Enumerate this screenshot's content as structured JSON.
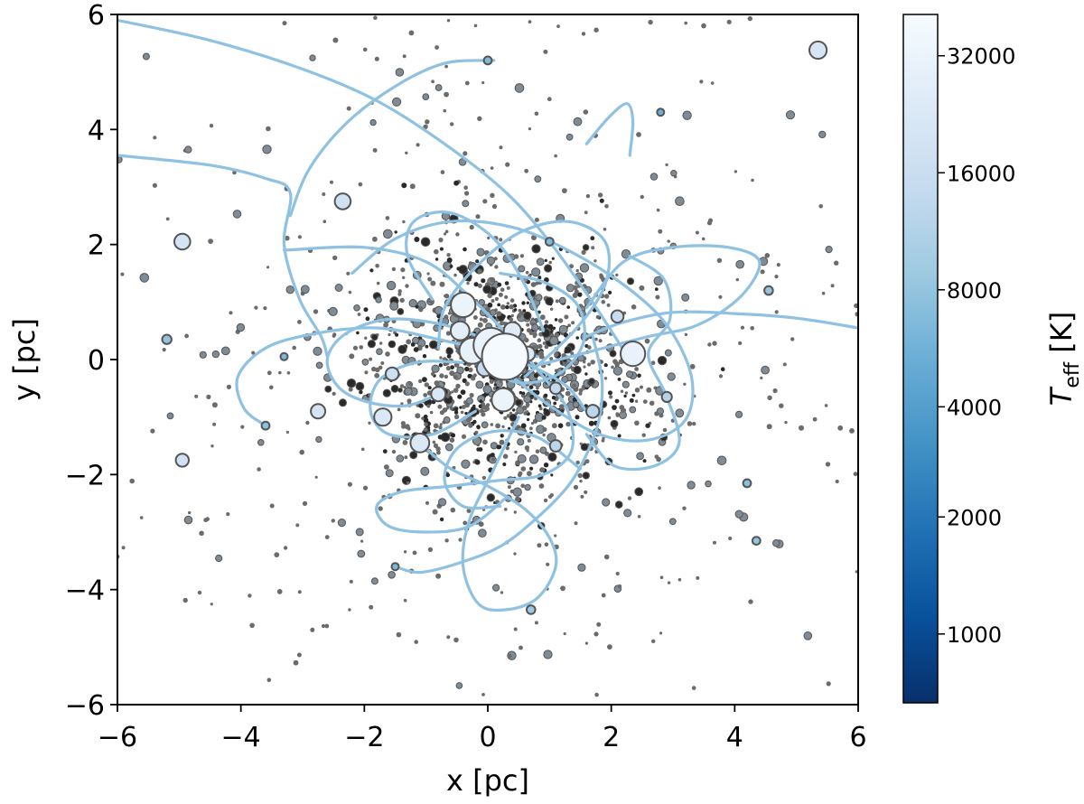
{
  "chart_data": {
    "type": "scatter",
    "xlabel": "x [pc]",
    "ylabel": "y [pc]",
    "xlim": [
      -6,
      6
    ],
    "ylim": [
      -6,
      6
    ],
    "xticks": [
      -6,
      -4,
      -2,
      0,
      2,
      4,
      6
    ],
    "yticks": [
      -6,
      -4,
      -2,
      0,
      2,
      4,
      6
    ],
    "xtick_labels": [
      "−6",
      "−4",
      "−2",
      "0",
      "2",
      "4",
      "6"
    ],
    "ytick_labels": [
      "−6",
      "−4",
      "−2",
      "0",
      "2",
      "4",
      "6"
    ],
    "grid": false,
    "colorbar": {
      "label_main": "T",
      "label_sub": "eff",
      "label_unit": " [K]",
      "ticks": [
        {
          "label": "1000",
          "frac": 0.1
        },
        {
          "label": "2000",
          "frac": 0.27
        },
        {
          "label": "4000",
          "frac": 0.43
        },
        {
          "label": "8000",
          "frac": 0.6
        },
        {
          "label": "16000",
          "frac": 0.77
        },
        {
          "label": "32000",
          "frac": 0.94
        }
      ],
      "colors": [
        "#08306b",
        "#08519c",
        "#2171b5",
        "#4292c6",
        "#6baed6",
        "#9ecae1",
        "#c6dbef",
        "#deebf7",
        "#f7fbff"
      ]
    },
    "colors": {
      "orbit": "#8ec1e2",
      "star_small": "#6b6b6b",
      "star_edge": "#555555"
    },
    "background_stars": {
      "count": 1700,
      "core_fraction": 0.65,
      "core_center": [
        0.3,
        -0.1
      ],
      "core_sigma": 1.05,
      "halo_sigma": 3.4,
      "seed": 12345
    },
    "stars": [
      {
        "x": 0.28,
        "y": 0.05,
        "size": 3.2,
        "teff_frac": 0.99
      },
      {
        "x": 0.05,
        "y": 0.25,
        "size": 2.4,
        "teff_frac": 0.93
      },
      {
        "x": -0.25,
        "y": 0.15,
        "size": 1.8,
        "teff_frac": 0.92
      },
      {
        "x": -0.4,
        "y": 0.95,
        "size": 1.7,
        "teff_frac": 0.94
      },
      {
        "x": 0.25,
        "y": -0.7,
        "size": 1.6,
        "teff_frac": 0.94
      },
      {
        "x": 2.35,
        "y": 0.1,
        "size": 1.7,
        "teff_frac": 0.93
      },
      {
        "x": -0.45,
        "y": 0.5,
        "size": 1.3,
        "teff_frac": 0.9
      },
      {
        "x": 0.4,
        "y": 0.5,
        "size": 1.2,
        "teff_frac": 0.88
      },
      {
        "x": -1.1,
        "y": -1.45,
        "size": 1.3,
        "teff_frac": 0.86
      },
      {
        "x": -1.7,
        "y": -1.0,
        "size": 1.2,
        "teff_frac": 0.86
      },
      {
        "x": -0.8,
        "y": -0.6,
        "size": 1.0,
        "teff_frac": 0.84
      },
      {
        "x": 5.35,
        "y": 5.38,
        "size": 1.2,
        "teff_frac": 0.83
      },
      {
        "x": -2.35,
        "y": 2.75,
        "size": 1.1,
        "teff_frac": 0.8
      },
      {
        "x": -4.95,
        "y": 2.05,
        "size": 1.1,
        "teff_frac": 0.82
      },
      {
        "x": -2.75,
        "y": -0.9,
        "size": 1.0,
        "teff_frac": 0.82
      },
      {
        "x": -4.95,
        "y": -1.75,
        "size": 0.9,
        "teff_frac": 0.8
      },
      {
        "x": -1.55,
        "y": -0.25,
        "size": 0.9,
        "teff_frac": 0.78
      },
      {
        "x": 1.7,
        "y": -0.9,
        "size": 0.9,
        "teff_frac": 0.72
      },
      {
        "x": 1.1,
        "y": -0.5,
        "size": 0.8,
        "teff_frac": 0.74
      },
      {
        "x": 2.1,
        "y": 0.75,
        "size": 0.85,
        "teff_frac": 0.76
      },
      {
        "x": -0.05,
        "y": -0.15,
        "size": 1.1,
        "teff_frac": 0.75
      },
      {
        "x": 0.65,
        "y": 0.1,
        "size": 1.0,
        "teff_frac": 0.86
      },
      {
        "x": 1.1,
        "y": -1.5,
        "size": 0.8,
        "teff_frac": 0.72
      },
      {
        "x": 2.9,
        "y": -0.65,
        "size": 0.7,
        "teff_frac": 0.7
      },
      {
        "x": 4.35,
        "y": -3.15,
        "size": 0.55,
        "teff_frac": 0.6
      },
      {
        "x": 4.55,
        "y": 1.2,
        "size": 0.6,
        "teff_frac": 0.6
      },
      {
        "x": -5.2,
        "y": 0.35,
        "size": 0.65,
        "teff_frac": 0.6
      },
      {
        "x": -3.6,
        "y": -1.15,
        "size": 0.55,
        "teff_frac": 0.58
      },
      {
        "x": 0.7,
        "y": -4.35,
        "size": 0.6,
        "teff_frac": 0.62
      },
      {
        "x": 0.0,
        "y": 5.2,
        "size": 0.55,
        "teff_frac": 0.55
      },
      {
        "x": 2.8,
        "y": 4.3,
        "size": 0.5,
        "teff_frac": 0.5
      },
      {
        "x": 1.0,
        "y": 2.05,
        "size": 0.55,
        "teff_frac": 0.55
      },
      {
        "x": -1.5,
        "y": -3.6,
        "size": 0.5,
        "teff_frac": 0.55
      },
      {
        "x": -3.3,
        "y": 0.05,
        "size": 0.5,
        "teff_frac": 0.55
      },
      {
        "x": 4.2,
        "y": -2.15,
        "size": 0.55,
        "teff_frac": 0.58
      }
    ],
    "orbits": [
      {
        "pts": [
          [
            -6.0,
            5.9
          ],
          [
            -4.5,
            5.55
          ],
          [
            -3.0,
            5.05
          ],
          [
            -1.8,
            4.5
          ],
          [
            -0.7,
            3.75
          ],
          [
            0.3,
            2.9
          ],
          [
            1.0,
            2.05
          ],
          [
            1.6,
            1.15
          ],
          [
            2.0,
            0.5
          ],
          [
            2.35,
            -0.1
          ]
        ]
      },
      {
        "pts": [
          [
            -6.0,
            3.55
          ],
          [
            -4.5,
            3.38
          ],
          [
            -3.6,
            3.15
          ],
          [
            -3.2,
            2.9
          ],
          [
            -3.3,
            2.0
          ],
          [
            -3.05,
            1.05
          ],
          [
            -2.7,
            0.4
          ],
          [
            -2.6,
            0.05
          ]
        ]
      },
      {
        "pts": [
          [
            0.1,
            5.2
          ],
          [
            -0.7,
            5.15
          ],
          [
            -1.5,
            4.75
          ],
          [
            -2.3,
            4.1
          ],
          [
            -2.9,
            3.3
          ],
          [
            -3.2,
            2.5
          ]
        ]
      },
      {
        "pts": [
          [
            1.6,
            3.75
          ],
          [
            1.95,
            4.2
          ],
          [
            2.25,
            4.45
          ],
          [
            2.35,
            4.15
          ],
          [
            2.3,
            3.55
          ]
        ]
      },
      {
        "pts": [
          [
            -3.6,
            -1.15
          ],
          [
            -3.95,
            -0.85
          ],
          [
            -4.05,
            -0.3
          ],
          [
            -3.6,
            0.2
          ],
          [
            -2.8,
            0.45
          ],
          [
            -1.8,
            0.55
          ],
          [
            -0.8,
            0.35
          ],
          [
            0.3,
            0.05
          ],
          [
            1.2,
            -0.4
          ],
          [
            1.6,
            -0.9
          ]
        ]
      },
      {
        "pts": [
          [
            -3.3,
            1.9
          ],
          [
            -2.0,
            1.95
          ],
          [
            -1.0,
            1.7
          ],
          [
            -0.3,
            1.1
          ],
          [
            0.3,
            0.45
          ],
          [
            0.9,
            -0.3
          ],
          [
            1.3,
            -0.9
          ],
          [
            1.35,
            -1.6
          ],
          [
            0.9,
            -2.0
          ],
          [
            0.2,
            -2.1
          ],
          [
            -0.6,
            -2.2
          ],
          [
            -1.4,
            -2.3
          ],
          [
            -1.8,
            -2.55
          ],
          [
            -1.6,
            -2.9
          ],
          [
            -1.0,
            -3.0
          ],
          [
            -0.3,
            -2.9
          ],
          [
            0.3,
            -2.4
          ]
        ]
      },
      {
        "pts": [
          [
            -2.2,
            1.5
          ],
          [
            -1.5,
            2.1
          ],
          [
            -0.6,
            2.4
          ],
          [
            0.4,
            2.3
          ],
          [
            1.3,
            1.9
          ],
          [
            2.2,
            1.3
          ],
          [
            2.9,
            0.6
          ],
          [
            3.3,
            -0.3
          ],
          [
            3.2,
            -1.05
          ],
          [
            2.6,
            -1.4
          ],
          [
            1.8,
            -1.3
          ],
          [
            1.0,
            -0.8
          ],
          [
            0.4,
            -0.3
          ]
        ]
      },
      {
        "pts": [
          [
            1.6,
            0.9
          ],
          [
            2.2,
            1.7
          ],
          [
            3.0,
            1.95
          ],
          [
            3.9,
            1.95
          ],
          [
            4.4,
            1.7
          ],
          [
            4.1,
            1.1
          ],
          [
            3.4,
            0.6
          ],
          [
            2.6,
            0.4
          ],
          [
            1.7,
            0.15
          ],
          [
            0.8,
            -0.1
          ]
        ]
      },
      {
        "pts": [
          [
            -1.0,
            -1.55
          ],
          [
            -0.6,
            -1.9
          ],
          [
            0.0,
            -2.2
          ],
          [
            0.6,
            -2.6
          ],
          [
            1.0,
            -3.1
          ],
          [
            1.1,
            -3.6
          ],
          [
            0.8,
            -4.15
          ],
          [
            0.3,
            -4.35
          ],
          [
            -0.15,
            -4.25
          ],
          [
            -0.4,
            -3.6
          ],
          [
            -0.3,
            -2.8
          ],
          [
            0.1,
            -1.9
          ],
          [
            0.5,
            -1.0
          ]
        ]
      },
      {
        "pts": [
          [
            -1.5,
            -3.6
          ],
          [
            -1.1,
            -3.7
          ],
          [
            -0.5,
            -3.55
          ],
          [
            0.2,
            -3.25
          ],
          [
            0.8,
            -2.75
          ],
          [
            1.3,
            -2.2
          ],
          [
            1.6,
            -1.65
          ],
          [
            1.8,
            -1.05
          ],
          [
            1.85,
            -0.35
          ],
          [
            1.7,
            0.4
          ]
        ]
      },
      {
        "pts": [
          [
            -0.8,
            -0.6
          ],
          [
            -1.3,
            -0.8
          ],
          [
            -1.9,
            -0.75
          ],
          [
            -2.4,
            -0.5
          ],
          [
            -2.6,
            0.0
          ],
          [
            -2.3,
            0.45
          ],
          [
            -1.6,
            0.7
          ],
          [
            -0.7,
            0.6
          ],
          [
            0.1,
            0.3
          ],
          [
            0.8,
            0.05
          ]
        ]
      },
      {
        "pts": [
          [
            0.6,
            -0.3
          ],
          [
            1.4,
            0.5
          ],
          [
            1.9,
            1.3
          ],
          [
            1.9,
            2.05
          ],
          [
            1.3,
            2.4
          ],
          [
            0.5,
            2.2
          ],
          [
            -0.2,
            1.6
          ],
          [
            -0.7,
            0.9
          ],
          [
            -0.8,
            0.2
          ]
        ]
      },
      {
        "pts": [
          [
            -0.9,
            1.05
          ],
          [
            -1.3,
            1.8
          ],
          [
            -1.2,
            2.4
          ],
          [
            -0.6,
            2.55
          ],
          [
            0.1,
            2.1
          ],
          [
            0.6,
            1.3
          ],
          [
            0.9,
            0.5
          ]
        ]
      },
      {
        "pts": [
          [
            6.0,
            0.55
          ],
          [
            5.0,
            0.72
          ],
          [
            4.0,
            0.8
          ],
          [
            3.0,
            0.82
          ],
          [
            2.2,
            0.65
          ],
          [
            1.6,
            0.4
          ]
        ]
      },
      {
        "pts": [
          [
            2.3,
            1.8
          ],
          [
            2.85,
            1.4
          ],
          [
            2.95,
            0.7
          ],
          [
            2.6,
            0.1
          ],
          [
            2.9,
            -0.65
          ],
          [
            3.1,
            -1.45
          ],
          [
            2.7,
            -1.85
          ],
          [
            2.05,
            -1.85
          ],
          [
            1.6,
            -1.3
          ]
        ]
      },
      {
        "pts": [
          [
            -0.2,
            -0.9
          ],
          [
            -0.9,
            -1.3
          ],
          [
            -1.6,
            -1.3
          ],
          [
            -1.9,
            -0.9
          ],
          [
            -1.75,
            -0.35
          ],
          [
            -1.15,
            -0.05
          ],
          [
            -0.4,
            -0.05
          ]
        ]
      },
      {
        "pts": [
          [
            0.2,
            1.5
          ],
          [
            0.9,
            1.35
          ],
          [
            1.45,
            0.95
          ],
          [
            1.55,
            0.3
          ],
          [
            1.15,
            -0.25
          ],
          [
            0.5,
            -0.4
          ],
          [
            -0.1,
            -0.1
          ]
        ]
      },
      {
        "pts": [
          [
            1.5,
            -1.9
          ],
          [
            0.8,
            -1.35
          ],
          [
            0.1,
            -1.25
          ],
          [
            -0.5,
            -1.55
          ],
          [
            -0.7,
            -2.1
          ],
          [
            -0.4,
            -2.55
          ],
          [
            0.2,
            -2.55
          ]
        ]
      }
    ]
  }
}
